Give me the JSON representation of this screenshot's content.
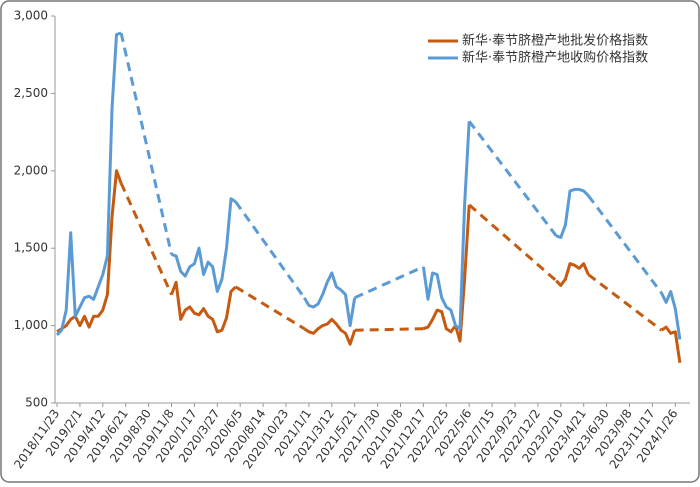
{
  "chart_data": {
    "type": "line",
    "categories": [
      "2018/11/23",
      null,
      null,
      null,
      null,
      "2019/2/1",
      null,
      null,
      null,
      null,
      "2019/4/12",
      null,
      null,
      null,
      null,
      "2019/6/21",
      null,
      null,
      null,
      null,
      "2019/8/30",
      null,
      null,
      null,
      null,
      "2019/11/8",
      null,
      null,
      null,
      null,
      "2020/1/17",
      null,
      null,
      null,
      null,
      "2020/3/27",
      null,
      null,
      null,
      null,
      "2020/6/5",
      null,
      null,
      null,
      null,
      "2020/8/14",
      null,
      null,
      null,
      null,
      "2020/10/23",
      null,
      null,
      null,
      null,
      "2021/1/1",
      null,
      null,
      null,
      null,
      "2021/3/12",
      null,
      null,
      null,
      null,
      "2021/5/21",
      null,
      null,
      null,
      null,
      "2021/7/30",
      null,
      null,
      null,
      null,
      "2021/10/8",
      null,
      null,
      null,
      null,
      "2021/12/17",
      null,
      null,
      null,
      null,
      "2022/2/25",
      null,
      null,
      null,
      null,
      "2022/5/6",
      null,
      null,
      null,
      null,
      "2022/7/15",
      null,
      null,
      null,
      null,
      "2022/9/23",
      null,
      null,
      null,
      null,
      "2022/12/2",
      null,
      null,
      null,
      null,
      "2023/2/10",
      null,
      null,
      null,
      null,
      "2023/4/21",
      null,
      null,
      null,
      null,
      "2023/6/30",
      null,
      null,
      null,
      null,
      "2023/9/8",
      null,
      null,
      null,
      null,
      "2023/11/17",
      null,
      null,
      null,
      null,
      "2024/1/26",
      null
    ],
    "series": [
      {
        "name": "新华·奉节脐橙产地批发价格指数",
        "color": "#c55a11",
        "values": [
          960,
          980,
          1000,
          1040,
          1060,
          1000,
          1060,
          990,
          1060,
          1060,
          1100,
          1200,
          1700,
          2000,
          1920,
          null,
          null,
          null,
          null,
          null,
          null,
          null,
          null,
          null,
          null,
          1200,
          1280,
          1040,
          1100,
          1120,
          1080,
          1070,
          1110,
          1060,
          1040,
          960,
          970,
          1050,
          1220,
          1250,
          null,
          null,
          null,
          null,
          null,
          null,
          null,
          null,
          null,
          null,
          null,
          null,
          null,
          null,
          980,
          960,
          950,
          980,
          1000,
          1010,
          1040,
          1010,
          970,
          950,
          880,
          970,
          null,
          null,
          null,
          null,
          null,
          null,
          null,
          null,
          null,
          null,
          null,
          null,
          null,
          null,
          980,
          990,
          1040,
          1100,
          1090,
          980,
          960,
          1000,
          900,
          1300,
          1780,
          null,
          null,
          null,
          null,
          null,
          null,
          null,
          null,
          null,
          null,
          null,
          null,
          null,
          null,
          null,
          null,
          null,
          null,
          1290,
          1260,
          1300,
          1400,
          1390,
          1370,
          1400,
          1330,
          null,
          null,
          null,
          null,
          null,
          null,
          null,
          null,
          null,
          null,
          null,
          null,
          null,
          null,
          null,
          970,
          990,
          950,
          960,
          760
        ]
      },
      {
        "name": "新华·奉节脐橙产地收购价格指数",
        "color": "#5b9bd5",
        "values": [
          940,
          970,
          1100,
          1600,
          1060,
          1120,
          1180,
          1190,
          1170,
          1250,
          1330,
          1450,
          2400,
          2880,
          2890,
          null,
          null,
          null,
          null,
          null,
          null,
          null,
          null,
          null,
          null,
          1460,
          1450,
          1350,
          1320,
          1380,
          1400,
          1500,
          1330,
          1410,
          1380,
          1220,
          1300,
          1500,
          1820,
          1800,
          null,
          null,
          null,
          null,
          null,
          null,
          null,
          null,
          null,
          null,
          null,
          null,
          null,
          null,
          1180,
          1130,
          1120,
          1140,
          1200,
          1280,
          1340,
          1250,
          1230,
          1200,
          1000,
          1180,
          null,
          null,
          null,
          null,
          null,
          null,
          null,
          null,
          null,
          null,
          null,
          null,
          null,
          null,
          1380,
          1170,
          1340,
          1330,
          1180,
          1120,
          1100,
          1000,
          980,
          1780,
          2320,
          null,
          null,
          null,
          null,
          null,
          null,
          null,
          null,
          null,
          null,
          null,
          null,
          null,
          null,
          null,
          null,
          null,
          null,
          1580,
          1570,
          1650,
          1870,
          1880,
          1880,
          1870,
          1840,
          null,
          null,
          null,
          null,
          null,
          null,
          null,
          null,
          null,
          null,
          null,
          null,
          null,
          null,
          null,
          1210,
          1150,
          1220,
          1110,
          910
        ]
      }
    ],
    "ylim": [
      500,
      3000
    ],
    "yticks": [
      500,
      {
        "value": 1000,
        "label": "1,000"
      },
      {
        "value": 1500,
        "label": "1,500"
      },
      {
        "value": 2000,
        "label": "2,000"
      },
      {
        "value": 2500,
        "label": "2,500"
      },
      {
        "value": 3000,
        "label": "3,000"
      }
    ],
    "grid": false,
    "legend": "top-right"
  }
}
